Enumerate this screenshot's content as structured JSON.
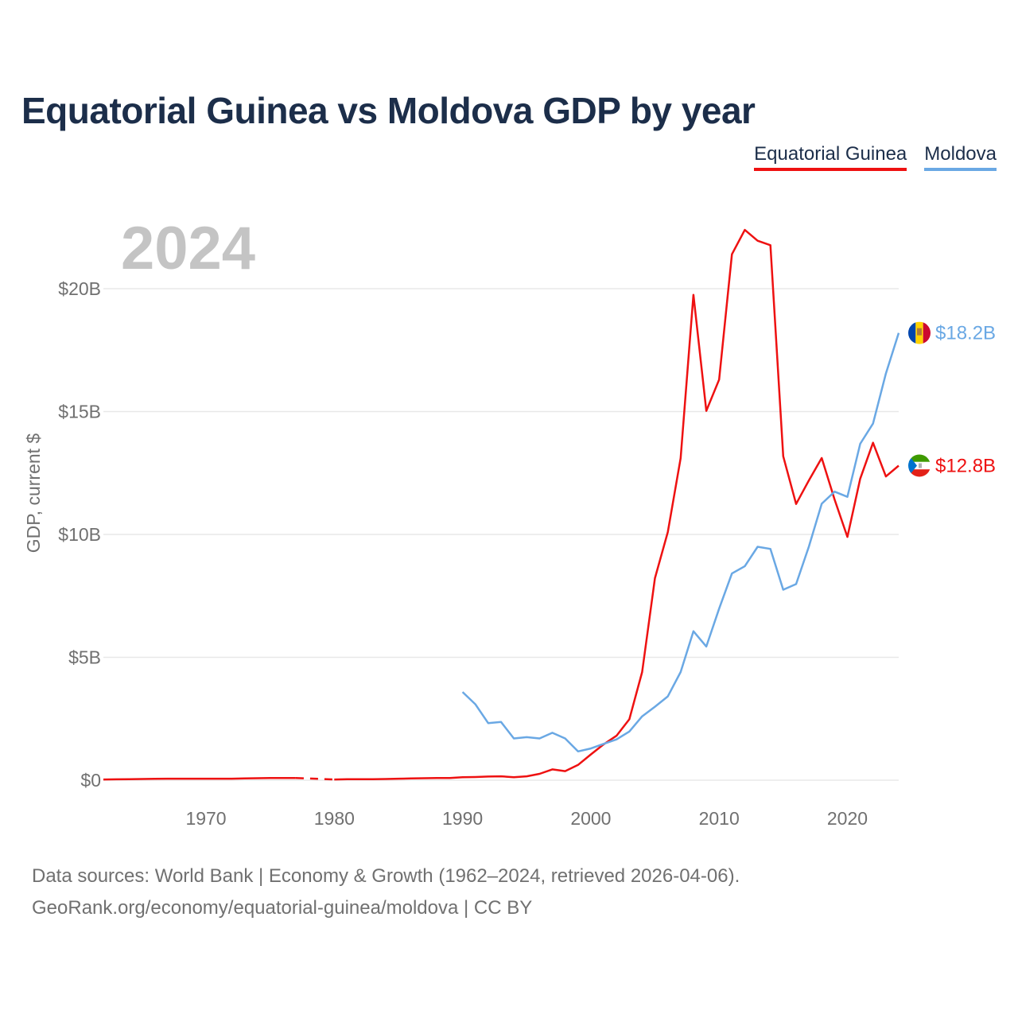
{
  "title": "Equatorial Guinea vs Moldova GDP by year",
  "legend": {
    "equatorial_guinea": "Equatorial Guinea",
    "moldova": "Moldova"
  },
  "colors": {
    "equatorial_guinea": "#ee1111",
    "moldova": "#6aa8e4",
    "title": "#1c2e4a",
    "year": "#c4c4c4",
    "axis_text": "#707070",
    "grid": "#e8e8e8"
  },
  "year_label": "2024",
  "end_labels": {
    "moldova": "$18.2B",
    "equatorial_guinea": "$12.8B"
  },
  "flags": {
    "moldova": "moldova-flag-icon",
    "equatorial_guinea": "equatorial-guinea-flag-icon"
  },
  "footer": {
    "line1": "Data sources: World Bank | Economy & Growth (1962–2024, retrieved 2026-04-06).",
    "line2": "GeoRank.org/economy/equatorial-guinea/moldova | CC BY"
  },
  "chart_data": {
    "type": "line",
    "title": "Equatorial Guinea vs Moldova GDP by year",
    "xlabel": "",
    "ylabel": "GDP, current $",
    "xlim": [
      1962,
      2024
    ],
    "ylim": [
      0,
      20
    ],
    "y_unit": "billion current US$",
    "x_ticks": [
      1970,
      1980,
      1990,
      2000,
      2010,
      2020
    ],
    "y_ticks": [
      0,
      5,
      10,
      15,
      20
    ],
    "y_tick_labels": [
      "$0",
      "$5B",
      "$10B",
      "$15B",
      "$20B"
    ],
    "grid": true,
    "legend_position": "top-right",
    "gap_years": [
      1977,
      1980
    ],
    "series": [
      {
        "name": "Equatorial Guinea",
        "x": [
          1962,
          1963,
          1964,
          1965,
          1966,
          1967,
          1968,
          1969,
          1970,
          1971,
          1972,
          1973,
          1974,
          1975,
          1976,
          1977,
          1980,
          1981,
          1982,
          1983,
          1984,
          1985,
          1986,
          1987,
          1988,
          1989,
          1990,
          1991,
          1992,
          1993,
          1994,
          1995,
          1996,
          1997,
          1998,
          1999,
          2000,
          2001,
          2002,
          2003,
          2004,
          2005,
          2006,
          2007,
          2008,
          2009,
          2010,
          2011,
          2012,
          2013,
          2014,
          2015,
          2016,
          2017,
          2018,
          2019,
          2020,
          2021,
          2022,
          2023,
          2024
        ],
        "values": [
          0.03,
          0.035,
          0.04,
          0.05,
          0.055,
          0.06,
          0.06,
          0.06,
          0.06,
          0.06,
          0.06,
          0.07,
          0.08,
          0.09,
          0.09,
          0.09,
          0.03,
          0.04,
          0.04,
          0.04,
          0.05,
          0.06,
          0.07,
          0.08,
          0.09,
          0.09,
          0.12,
          0.13,
          0.15,
          0.16,
          0.12,
          0.16,
          0.26,
          0.44,
          0.37,
          0.62,
          1.05,
          1.46,
          1.81,
          2.48,
          4.4,
          8.22,
          10.1,
          13.1,
          19.75,
          15.03,
          16.3,
          21.4,
          22.39,
          21.95,
          21.77,
          13.18,
          11.24,
          12.2,
          13.11,
          11.42,
          9.9,
          12.27,
          13.73,
          12.36,
          12.8
        ]
      },
      {
        "name": "Moldova",
        "x": [
          1990,
          1991,
          1992,
          1993,
          1994,
          1995,
          1996,
          1997,
          1998,
          1999,
          2000,
          2001,
          2002,
          2003,
          2004,
          2005,
          2006,
          2007,
          2008,
          2009,
          2010,
          2011,
          2012,
          2013,
          2014,
          2015,
          2016,
          2017,
          2018,
          2019,
          2020,
          2021,
          2022,
          2023,
          2024
        ],
        "values": [
          3.59,
          3.09,
          2.32,
          2.37,
          1.7,
          1.75,
          1.7,
          1.93,
          1.7,
          1.17,
          1.29,
          1.48,
          1.66,
          1.98,
          2.6,
          2.99,
          3.41,
          4.4,
          6.06,
          5.44,
          6.98,
          8.41,
          8.71,
          9.5,
          9.41,
          7.75,
          7.98,
          9.51,
          11.25,
          11.74,
          11.53,
          13.69,
          14.51,
          16.55,
          18.2
        ]
      }
    ]
  }
}
